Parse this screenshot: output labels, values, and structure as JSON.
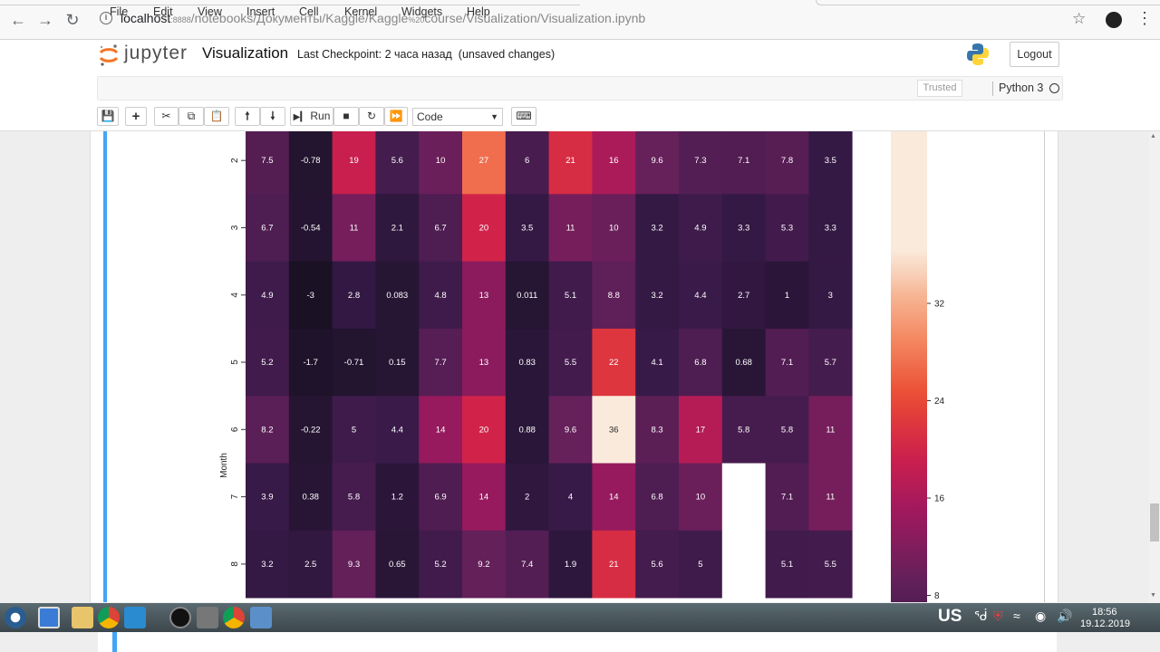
{
  "browser": {
    "url_host": "localhost",
    "url_port": ":8888",
    "url_path": "/notebooks/Документы/Kaggle/Kaggle",
    "url_encoded": "%20",
    "url_rest": "course/Visualization/Visualization.ipynb"
  },
  "jupyter": {
    "logo_text": "jupyter",
    "notebook_title": "Visualization",
    "checkpoint": "Last Checkpoint: 2 часа назад",
    "unsaved": "(unsaved changes)",
    "logout": "Logout",
    "menu": [
      "File",
      "Edit",
      "View",
      "Insert",
      "Cell",
      "Kernel",
      "Widgets",
      "Help"
    ],
    "trusted": "Trusted",
    "kernel": "Python 3",
    "run_label": "Run",
    "cell_type": "Code"
  },
  "chart_data": {
    "type": "heatmap",
    "ylabel": "Month",
    "row_labels": [
      "2",
      "3",
      "4",
      "5",
      "6",
      "7",
      "8"
    ],
    "columns": 14,
    "cells": [
      [
        7.5,
        -0.78,
        19,
        5.6,
        10,
        27,
        6,
        21,
        16,
        9.6,
        7.3,
        7.1,
        7.8,
        3.5
      ],
      [
        6.7,
        -0.54,
        11,
        2.1,
        6.7,
        20,
        3.5,
        11,
        10,
        3.2,
        4.9,
        3.3,
        5.3,
        3.3
      ],
      [
        4.9,
        -3,
        2.8,
        0.083,
        4.8,
        13,
        0.011,
        5.1,
        8.8,
        3.2,
        4.4,
        2.7,
        1,
        3
      ],
      [
        5.2,
        -1.7,
        -0.71,
        0.15,
        7.7,
        13,
        0.83,
        5.5,
        22,
        4.1,
        6.8,
        0.68,
        7.1,
        5.7
      ],
      [
        8.2,
        -0.22,
        5,
        4.4,
        14,
        20,
        0.88,
        9.6,
        36,
        8.3,
        17,
        5.8,
        5.8,
        11
      ],
      [
        3.9,
        0.38,
        5.8,
        1.2,
        6.9,
        14,
        2,
        4,
        14,
        6.8,
        10,
        null,
        7.1,
        11
      ],
      [
        3.2,
        2.5,
        9.3,
        0.65,
        5.2,
        9.2,
        7.4,
        1.9,
        21,
        5.6,
        5,
        null,
        5.1,
        5.5
      ]
    ],
    "colorbar_ticks": [
      8,
      16,
      24,
      32
    ],
    "colormap": "rocket",
    "vmin": -3,
    "vmax": 36
  },
  "taskbar": {
    "keyboard_layout": "US",
    "time": "18:56",
    "date": "19.12.2019"
  },
  "colors": {
    "selection_bar": "#42a5f5",
    "taskbar": "#4a585d"
  }
}
